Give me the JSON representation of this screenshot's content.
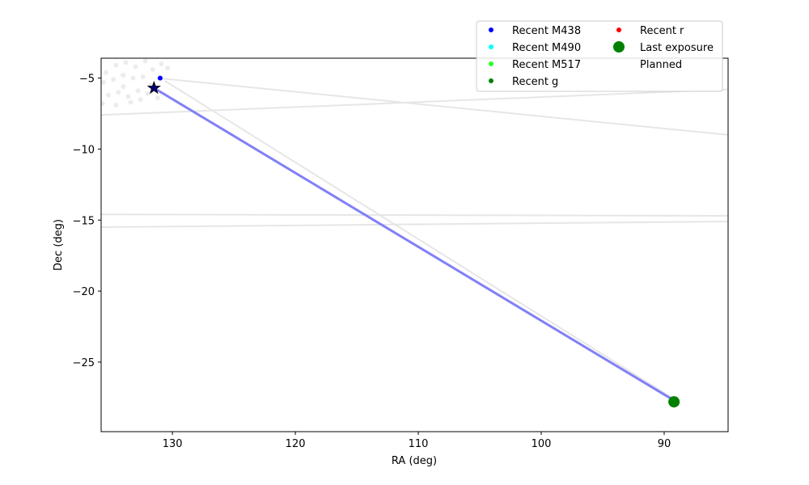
{
  "chart_data": {
    "type": "scatter",
    "xlabel": "RA (deg)",
    "ylabel": "Dec (deg)",
    "xlim": [
      135.8,
      84.8
    ],
    "ylim": [
      -29.9,
      -3.6
    ],
    "x_inverted": true,
    "grid": false,
    "legend_position": "top-right",
    "x_ticks": [
      {
        "value": 130,
        "label": "130"
      },
      {
        "value": 120,
        "label": "120"
      },
      {
        "value": 110,
        "label": "110"
      },
      {
        "value": 100,
        "label": "100"
      },
      {
        "value": 90,
        "label": "90"
      }
    ],
    "y_ticks": [
      {
        "value": -5,
        "label": "−5"
      },
      {
        "value": -10,
        "label": "−10"
      },
      {
        "value": -15,
        "label": "−15"
      },
      {
        "value": -20,
        "label": "−20"
      },
      {
        "value": -25,
        "label": "−25"
      }
    ],
    "legend": [
      {
        "label": "Recent M438",
        "marker": "dot",
        "color": "#0000ff"
      },
      {
        "label": "Recent M490",
        "marker": "dot",
        "color": "#00ffff"
      },
      {
        "label": "Recent M517",
        "marker": "dot",
        "color": "#2bff2b"
      },
      {
        "label": "Recent g",
        "marker": "dot",
        "color": "#008000"
      },
      {
        "label": "Recent r",
        "marker": "dot",
        "color": "#ff0000"
      },
      {
        "label": "Last exposure",
        "marker": "big-dot",
        "color": "#008000"
      },
      {
        "label": "Planned",
        "marker": "none",
        "color": "#ffffff"
      }
    ],
    "background_lines": [
      {
        "color": "#e6e6e6",
        "points": [
          [
            135.8,
            -7.6
          ],
          [
            84.8,
            -5.8
          ]
        ]
      },
      {
        "color": "#e6e6e6",
        "points": [
          [
            131.2,
            -5.0
          ],
          [
            84.8,
            -9.0
          ]
        ]
      },
      {
        "color": "#e6e6e6",
        "points": [
          [
            135.8,
            -14.6
          ],
          [
            84.8,
            -14.7
          ]
        ]
      },
      {
        "color": "#e6e6e6",
        "points": [
          [
            135.8,
            -15.5
          ],
          [
            84.8,
            -15.1
          ]
        ]
      },
      {
        "color": "#e6e6e6",
        "points": [
          [
            130.6,
            -5.2
          ],
          [
            89.2,
            -27.6
          ]
        ]
      }
    ],
    "background_points": {
      "color": "#ececec",
      "points": [
        [
          135.4,
          -4.6
        ],
        [
          134.6,
          -4.1
        ],
        [
          133.8,
          -3.9
        ],
        [
          133.0,
          -4.2
        ],
        [
          132.2,
          -3.8
        ],
        [
          131.6,
          -4.4
        ],
        [
          130.9,
          -4.0
        ],
        [
          130.4,
          -4.3
        ],
        [
          135.6,
          -5.3
        ],
        [
          134.8,
          -5.1
        ],
        [
          134.0,
          -5.6
        ],
        [
          133.2,
          -5.0
        ],
        [
          132.4,
          -4.9
        ],
        [
          131.8,
          -5.5
        ],
        [
          135.2,
          -6.2
        ],
        [
          134.4,
          -6.0
        ],
        [
          133.6,
          -6.3
        ],
        [
          132.8,
          -5.9
        ],
        [
          132.0,
          -6.1
        ],
        [
          131.2,
          -6.4
        ],
        [
          135.7,
          -6.8
        ],
        [
          134.6,
          -6.9
        ],
        [
          133.4,
          -6.7
        ],
        [
          132.6,
          -6.5
        ],
        [
          134.0,
          -4.8
        ]
      ]
    },
    "series": [
      {
        "name": "Recent M438",
        "marker": "dot",
        "color": "#0000ff",
        "points": [
          [
            131.0,
            -5.0
          ]
        ]
      },
      {
        "name": "Last exposure",
        "marker": "big-dot",
        "color": "#008000",
        "points": [
          [
            89.2,
            -27.8
          ]
        ]
      }
    ],
    "path": {
      "color": "#8080f8",
      "points": [
        [
          131.5,
          -5.7
        ],
        [
          89.4,
          -27.6
        ]
      ]
    },
    "star_marker": {
      "x": 131.5,
      "y": -5.7,
      "color": "#000080"
    }
  }
}
